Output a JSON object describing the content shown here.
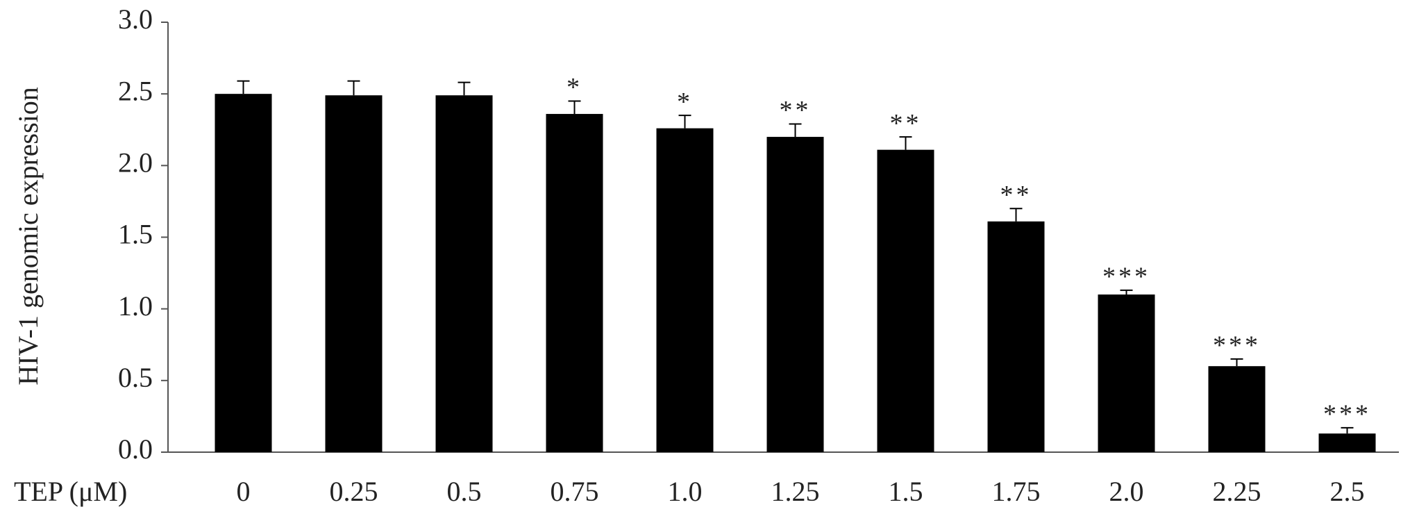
{
  "chart_data": {
    "type": "bar",
    "y_label": "HIV-1 genomic expression",
    "x_label": "TEP (μM)",
    "categories": [
      "0",
      "0.25",
      "0.5",
      "0.75",
      "1.0",
      "1.25",
      "1.5",
      "1.75",
      "2.0",
      "2.25",
      "2.5"
    ],
    "values": [
      2.5,
      2.49,
      2.49,
      2.36,
      2.26,
      2.2,
      2.11,
      1.61,
      1.1,
      0.6,
      0.13
    ],
    "errors": [
      0.09,
      0.1,
      0.09,
      0.09,
      0.09,
      0.09,
      0.09,
      0.09,
      0.03,
      0.05,
      0.04
    ],
    "annotations": [
      null,
      null,
      null,
      "*",
      "*",
      "**",
      "**",
      "**",
      "***",
      "***",
      "***"
    ],
    "color": "#000000",
    "ylim": [
      0,
      3
    ],
    "yticks": [
      {
        "value": 0,
        "label": "0.0"
      },
      0.5,
      {
        "value": 1,
        "label": "1.0"
      },
      1.5,
      {
        "value": 2,
        "label": "2.0"
      },
      2.5,
      {
        "value": 3,
        "label": "3.0"
      }
    ],
    "grid": false
  }
}
